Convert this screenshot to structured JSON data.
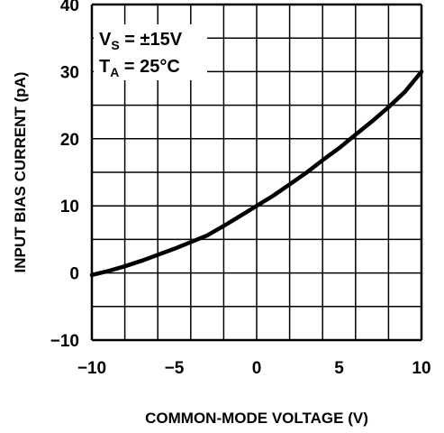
{
  "chart_data": {
    "type": "line",
    "title": "",
    "xlabel": "COMMON-MODE VOLTAGE (V)",
    "ylabel": "INPUT BIAS CURRENT (pA)",
    "xlim": [
      -10,
      10
    ],
    "ylim": [
      -10,
      40
    ],
    "x_ticks": [
      -10,
      -5,
      0,
      5,
      10
    ],
    "y_ticks": [
      -10,
      0,
      10,
      20,
      30,
      40
    ],
    "x_tick_labels": [
      "−10",
      "−5",
      "0",
      "5",
      "10"
    ],
    "y_tick_labels": [
      "−10",
      "0",
      "10",
      "20",
      "30",
      "40"
    ],
    "grid": true,
    "grid_x_step": 2,
    "grid_y_step": 5,
    "annotation_lines": [
      {
        "main": "V",
        "sub": "S",
        "rest": " = ±15V"
      },
      {
        "main": "T",
        "sub": "A",
        "rest": " = 25°C"
      }
    ],
    "series": [
      {
        "x": [
          -10,
          -9,
          -8,
          -7,
          -6,
          -5,
          -4,
          -3,
          -2,
          -1,
          0,
          1,
          2,
          3,
          4,
          5,
          6,
          7,
          8,
          9,
          10
        ],
        "y": [
          -0.3,
          0.3,
          1.0,
          1.8,
          2.7,
          3.6,
          4.6,
          5.6,
          7.0,
          8.5,
          10.0,
          11.5,
          13.2,
          14.9,
          16.8,
          18.6,
          20.6,
          22.6,
          24.7,
          27.0,
          30.0
        ]
      }
    ]
  },
  "colors": {
    "line": "#000000",
    "grid": "#000000",
    "background": "#ffffff"
  }
}
